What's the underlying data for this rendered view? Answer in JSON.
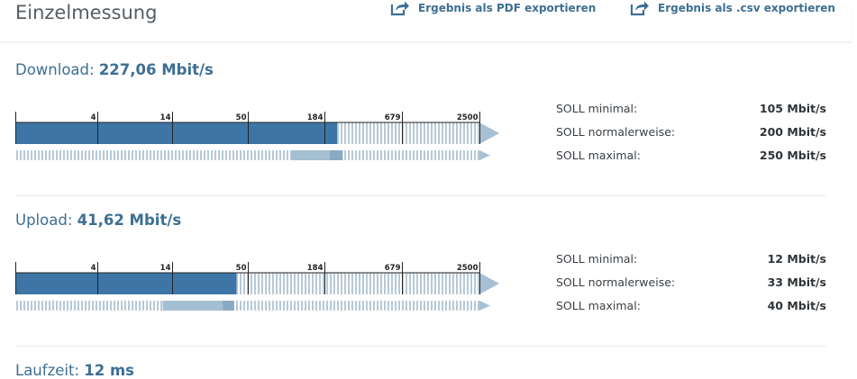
{
  "header": {
    "title": "Einzelmessung",
    "export_pdf": "Ergebnis als PDF exportieren",
    "export_csv": "Ergebnis als .csv exportieren"
  },
  "scale_ticks": [
    "4",
    "14",
    "50",
    "184",
    "679",
    "2500"
  ],
  "sections": [
    {
      "id": "download",
      "label": "Download:",
      "value_text": "227,06 Mbit/s",
      "value": 227.06,
      "soll": [
        {
          "label": "SOLL minimal:",
          "value": "105 Mbit/s"
        },
        {
          "label": "SOLL normalerweise:",
          "value": "200 Mbit/s"
        },
        {
          "label": "SOLL maximal:",
          "value": "250 Mbit/s"
        }
      ],
      "soll_values": {
        "min": 105,
        "normal": 200,
        "max": 250
      }
    },
    {
      "id": "upload",
      "label": "Upload:",
      "value_text": "41,62 Mbit/s",
      "value": 41.62,
      "soll": [
        {
          "label": "SOLL minimal:",
          "value": "12 Mbit/s"
        },
        {
          "label": "SOLL normalerweise:",
          "value": "33 Mbit/s"
        },
        {
          "label": "SOLL maximal:",
          "value": "40 Mbit/s"
        }
      ],
      "soll_values": {
        "min": 12,
        "normal": 33,
        "max": 40
      }
    },
    {
      "id": "laufzeit",
      "label": "Laufzeit:",
      "value_text": "12 ms"
    }
  ],
  "colors": {
    "bar": "#3d76a6",
    "soll_light": "#a4bed2",
    "soll_mid": "#8aaac3",
    "hatch": "#b8c9d7",
    "arrow": "#a8c0d3",
    "tick": "#222222"
  }
}
